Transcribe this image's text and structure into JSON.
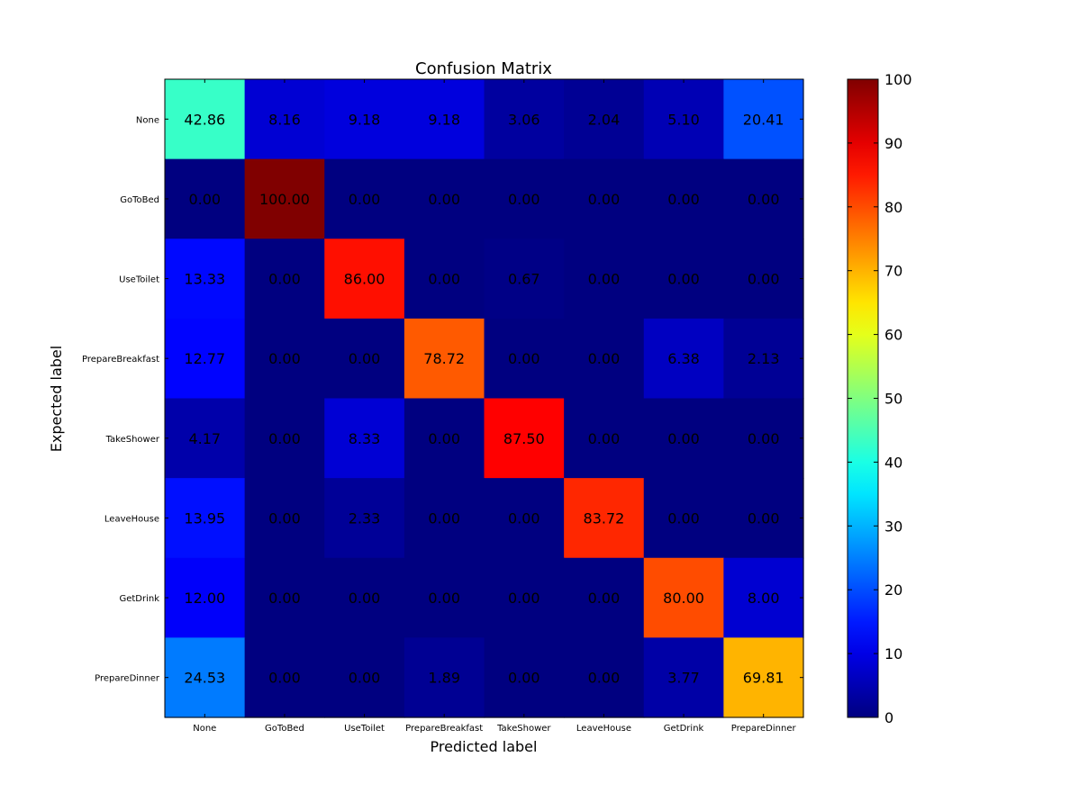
{
  "chart_data": {
    "type": "heatmap",
    "title": "Confusion Matrix",
    "xlabel": "Predicted label",
    "ylabel": "Expected label",
    "x_categories": [
      "None",
      "GoToBed",
      "UseToilet",
      "PrepareBreakfast",
      "TakeShower",
      "LeaveHouse",
      "GetDrink",
      "PrepareDinner"
    ],
    "y_categories": [
      "None",
      "GoToBed",
      "UseToilet",
      "PrepareBreakfast",
      "TakeShower",
      "LeaveHouse",
      "GetDrink",
      "PrepareDinner"
    ],
    "values": [
      [
        42.86,
        8.16,
        9.18,
        9.18,
        3.06,
        2.04,
        5.1,
        20.41
      ],
      [
        0.0,
        100.0,
        0.0,
        0.0,
        0.0,
        0.0,
        0.0,
        0.0
      ],
      [
        13.33,
        0.0,
        86.0,
        0.0,
        0.67,
        0.0,
        0.0,
        0.0
      ],
      [
        12.77,
        0.0,
        0.0,
        78.72,
        0.0,
        0.0,
        6.38,
        2.13
      ],
      [
        4.17,
        0.0,
        8.33,
        0.0,
        87.5,
        0.0,
        0.0,
        0.0
      ],
      [
        13.95,
        0.0,
        2.33,
        0.0,
        0.0,
        83.72,
        0.0,
        0.0
      ],
      [
        12.0,
        0.0,
        0.0,
        0.0,
        0.0,
        0.0,
        80.0,
        8.0
      ],
      [
        24.53,
        0.0,
        0.0,
        1.89,
        0.0,
        0.0,
        3.77,
        69.81
      ]
    ],
    "value_labels": [
      [
        "42.86",
        "8.16",
        "9.18",
        "9.18",
        "3.06",
        "2.04",
        "5.10",
        "20.41"
      ],
      [
        "0.00",
        "100.00",
        "0.00",
        "0.00",
        "0.00",
        "0.00",
        "0.00",
        "0.00"
      ],
      [
        "13.33",
        "0.00",
        "86.00",
        "0.00",
        "0.67",
        "0.00",
        "0.00",
        "0.00"
      ],
      [
        "12.77",
        "0.00",
        "0.00",
        "78.72",
        "0.00",
        "0.00",
        "6.38",
        "2.13"
      ],
      [
        "4.17",
        "0.00",
        "8.33",
        "0.00",
        "87.50",
        "0.00",
        "0.00",
        "0.00"
      ],
      [
        "13.95",
        "0.00",
        "2.33",
        "0.00",
        "0.00",
        "83.72",
        "0.00",
        "0.00"
      ],
      [
        "12.00",
        "0.00",
        "0.00",
        "0.00",
        "0.00",
        "0.00",
        "80.00",
        "8.00"
      ],
      [
        "24.53",
        "0.00",
        "0.00",
        "1.89",
        "0.00",
        "0.00",
        "3.77",
        "69.81"
      ]
    ],
    "colormap": "jet",
    "colorbar": {
      "range": [
        0,
        100
      ],
      "ticks": [
        "0",
        "10",
        "20",
        "30",
        "40",
        "50",
        "60",
        "70",
        "80",
        "90",
        "100"
      ]
    },
    "grid": false
  }
}
